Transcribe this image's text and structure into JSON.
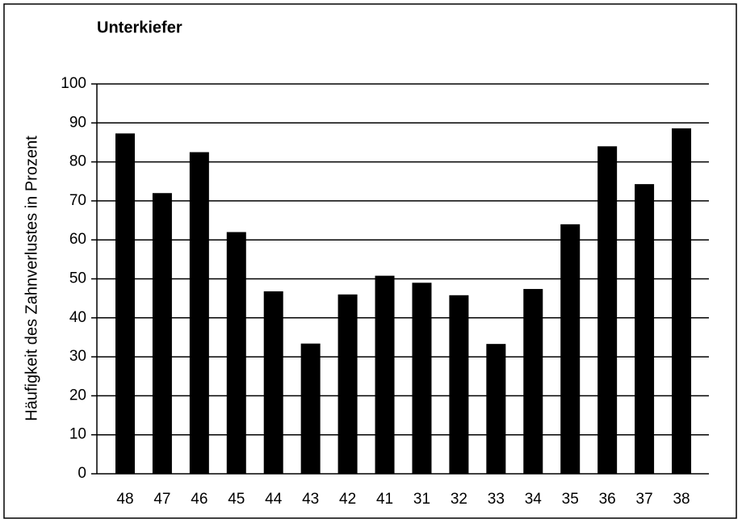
{
  "chart_data": {
    "type": "bar",
    "title": "Unterkiefer",
    "y_label": "Häufigkeit des Zahnverlustes in Prozent",
    "categories": [
      "48",
      "47",
      "46",
      "45",
      "44",
      "43",
      "42",
      "41",
      "31",
      "32",
      "33",
      "34",
      "35",
      "36",
      "37",
      "38"
    ],
    "values": [
      87.3,
      72,
      82.5,
      62,
      46.8,
      33.4,
      46,
      50.8,
      49,
      45.8,
      33.3,
      47.4,
      64,
      84,
      74.3,
      88.6
    ],
    "color": "#000000",
    "ylim": [
      0,
      100
    ],
    "yticks": [
      0,
      10,
      20,
      30,
      40,
      50,
      60,
      70,
      80,
      90,
      100
    ],
    "grid": true
  }
}
